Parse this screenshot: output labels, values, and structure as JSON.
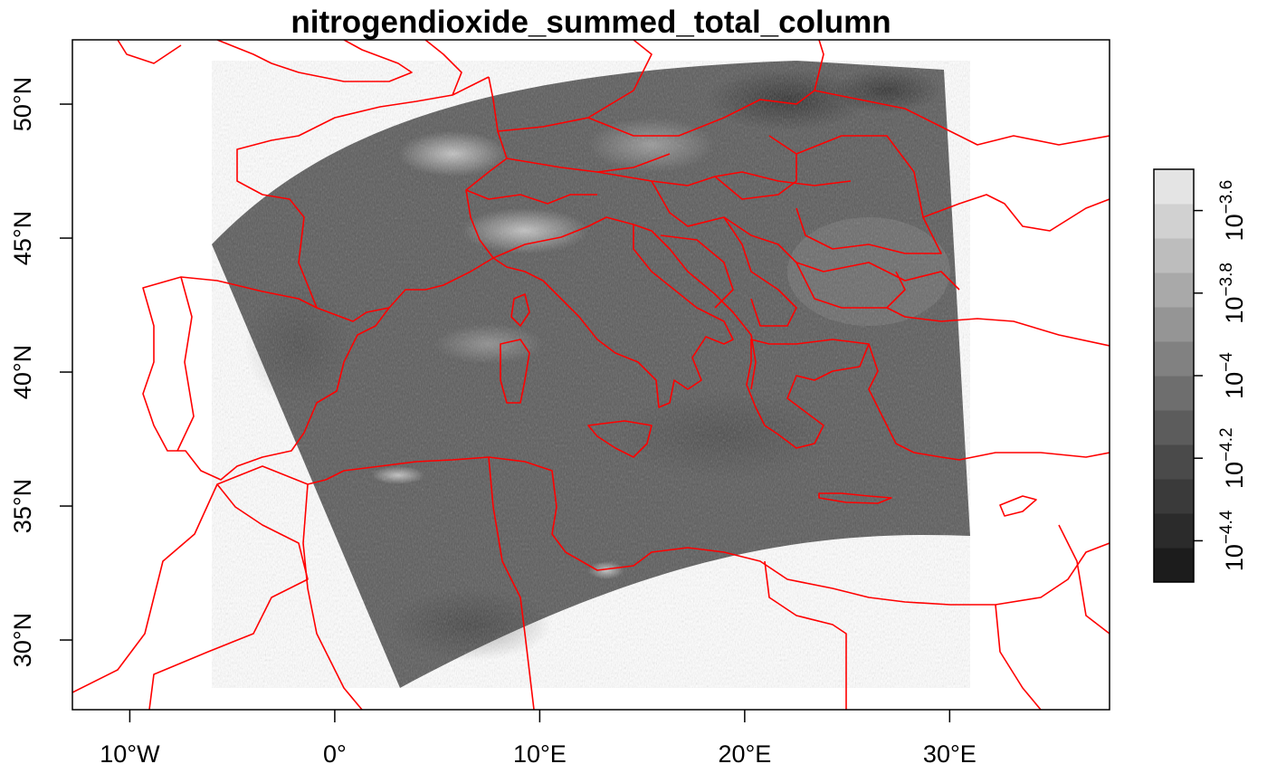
{
  "map": {
    "title": "nitrogendioxide_summed_total_column",
    "projection": "equirectangular",
    "lon_range": [
      -12.8,
      37.8
    ],
    "lat_range": [
      27.4,
      52.4
    ],
    "x_ticks": [
      {
        "value": -10,
        "label": "10°W"
      },
      {
        "value": 0,
        "label": "0°"
      },
      {
        "value": 10,
        "label": "10°E"
      },
      {
        "value": 20,
        "label": "20°E"
      },
      {
        "value": 30,
        "label": "30°E"
      }
    ],
    "y_ticks": [
      {
        "value": 30,
        "label": "30°N"
      },
      {
        "value": 35,
        "label": "35°N"
      },
      {
        "value": 40,
        "label": "40°N"
      },
      {
        "value": 45,
        "label": "45°N"
      },
      {
        "value": 50,
        "label": "50°N"
      }
    ],
    "border_color": "#ff0000",
    "swath": {
      "corners_lonlat": [
        [
          -5.8,
          44.8
        ],
        [
          29.6,
          51.5
        ],
        [
          31.0,
          34.0
        ],
        [
          3.4,
          28.2
        ]
      ],
      "colormap": "grayscale"
    }
  },
  "colorbar": {
    "scale": "log10",
    "range": [
      -4.5,
      -3.5
    ],
    "colors": [
      "#1c1c1c",
      "#2b2b2b",
      "#3a3a3a",
      "#4a4a4a",
      "#5c5c5c",
      "#6e6e6e",
      "#818181",
      "#959595",
      "#a9a9a9",
      "#bdbdbd",
      "#d1d1d1",
      "#e4e4e4"
    ],
    "ticks": [
      {
        "value": -4.4,
        "base": "10",
        "exp": "−4.4"
      },
      {
        "value": -4.2,
        "base": "10",
        "exp": "−4.2"
      },
      {
        "value": -4.0,
        "base": "10",
        "exp": "−4"
      },
      {
        "value": -3.8,
        "base": "10",
        "exp": "−3.8"
      },
      {
        "value": -3.6,
        "base": "10",
        "exp": "−3.6"
      }
    ]
  }
}
